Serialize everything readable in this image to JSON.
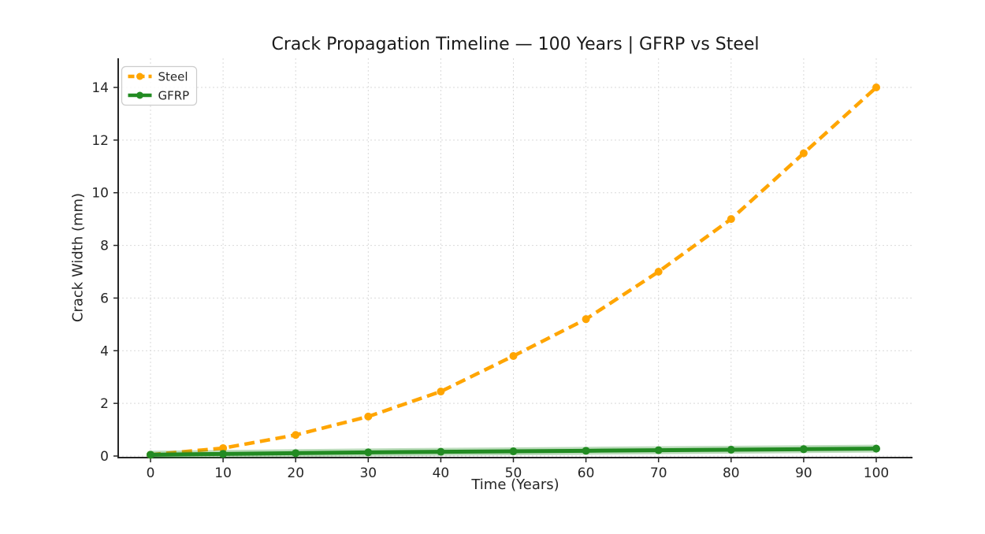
{
  "page": {
    "background": "#ffffff"
  },
  "chart_data": {
    "type": "line",
    "title": "Crack Propagation Timeline — 100 Years | GFRP vs Steel",
    "xlabel": "Time (Years)",
    "ylabel": "Crack Width (mm)",
    "x": [
      0,
      10,
      20,
      30,
      40,
      50,
      60,
      70,
      80,
      90,
      100
    ],
    "series": [
      {
        "name": "Steel",
        "color": "#FFA500",
        "line_style": "dashed",
        "marker": "circle",
        "values": [
          0.05,
          0.3,
          0.8,
          1.5,
          2.45,
          3.8,
          5.2,
          7.0,
          9.0,
          11.5,
          14.0
        ]
      },
      {
        "name": "GFRP",
        "color": "#228B22",
        "line_style": "solid",
        "marker": "circle",
        "values": [
          0.05,
          0.08,
          0.11,
          0.14,
          0.16,
          0.18,
          0.2,
          0.22,
          0.24,
          0.26,
          0.28
        ]
      }
    ],
    "xlim": [
      0,
      100
    ],
    "ylim": [
      0,
      14
    ],
    "xticks": [
      0,
      10,
      20,
      30,
      40,
      50,
      60,
      70,
      80,
      90,
      100
    ],
    "yticks": [
      0,
      2,
      4,
      6,
      8,
      10,
      12,
      14
    ],
    "grid": true,
    "grid_style": "dashed",
    "legend_position": "upper left",
    "colors": {
      "grid": "#d9d9d9",
      "spine": "#262626",
      "tick_text": "#262626",
      "title_text": "#1a1a1a",
      "legend_border": "#cccccc",
      "legend_bg": "#ffffff"
    }
  }
}
